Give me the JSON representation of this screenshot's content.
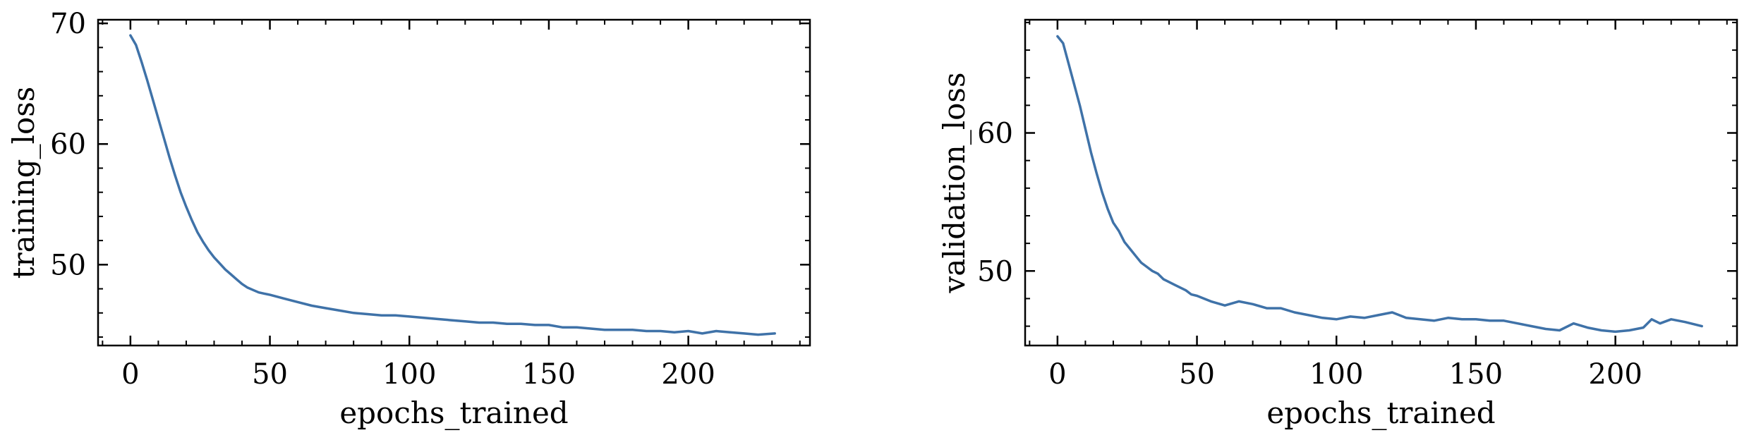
{
  "chart_data": [
    {
      "type": "line",
      "title": "",
      "xlabel": "epochs_trained",
      "ylabel": "training_loss",
      "xlim": [
        -11.6,
        243.6
      ],
      "ylim": [
        43.3,
        70.3
      ],
      "xticks": [
        0,
        50,
        100,
        150,
        200
      ],
      "yticks": [
        50,
        60,
        70
      ],
      "grid": false,
      "line_color": "#3f72a8",
      "series": [
        {
          "x": [
            0,
            2,
            4,
            6,
            8,
            10,
            12,
            14,
            16,
            18,
            20,
            22,
            24,
            26,
            28,
            30,
            32,
            34,
            36,
            38,
            40,
            42,
            44,
            46,
            48,
            50,
            55,
            60,
            65,
            70,
            75,
            80,
            85,
            90,
            95,
            100,
            105,
            110,
            115,
            120,
            125,
            130,
            135,
            140,
            145,
            150,
            155,
            160,
            165,
            170,
            175,
            180,
            185,
            190,
            195,
            200,
            205,
            210,
            215,
            220,
            225,
            231
          ],
          "y": [
            69.0,
            68.2,
            66.8,
            65.3,
            63.7,
            62.1,
            60.5,
            58.9,
            57.4,
            56.0,
            54.8,
            53.7,
            52.7,
            51.9,
            51.2,
            50.6,
            50.1,
            49.6,
            49.2,
            48.8,
            48.4,
            48.1,
            47.9,
            47.7,
            47.6,
            47.5,
            47.2,
            46.9,
            46.6,
            46.4,
            46.2,
            46.0,
            45.9,
            45.8,
            45.8,
            45.7,
            45.6,
            45.5,
            45.4,
            45.3,
            45.2,
            45.2,
            45.1,
            45.1,
            45.0,
            45.0,
            44.8,
            44.8,
            44.7,
            44.6,
            44.6,
            44.6,
            44.5,
            44.5,
            44.4,
            44.5,
            44.3,
            44.5,
            44.4,
            44.3,
            44.2,
            44.3
          ]
        }
      ]
    },
    {
      "type": "line",
      "title": "",
      "xlabel": "epochs_trained",
      "ylabel": "validation_loss",
      "xlim": [
        -11.6,
        243.6
      ],
      "ylim": [
        44.6,
        68.2
      ],
      "xticks": [
        0,
        50,
        100,
        150,
        200
      ],
      "yticks": [
        50,
        60
      ],
      "grid": false,
      "line_color": "#3f72a8",
      "series": [
        {
          "x": [
            0,
            2,
            4,
            6,
            8,
            10,
            12,
            14,
            16,
            18,
            20,
            22,
            24,
            26,
            28,
            30,
            32,
            34,
            36,
            38,
            40,
            42,
            44,
            46,
            48,
            50,
            55,
            60,
            65,
            70,
            75,
            80,
            85,
            90,
            95,
            100,
            105,
            110,
            115,
            120,
            125,
            130,
            135,
            140,
            145,
            150,
            155,
            160,
            165,
            170,
            175,
            180,
            185,
            190,
            195,
            200,
            205,
            210,
            213,
            216,
            220,
            225,
            231
          ],
          "y": [
            67.0,
            66.5,
            65.0,
            63.5,
            62.0,
            60.3,
            58.6,
            57.1,
            55.7,
            54.5,
            53.5,
            52.9,
            52.1,
            51.6,
            51.1,
            50.6,
            50.3,
            50.0,
            49.8,
            49.4,
            49.2,
            49.0,
            48.8,
            48.6,
            48.3,
            48.2,
            47.8,
            47.5,
            47.8,
            47.6,
            47.3,
            47.3,
            47.0,
            46.8,
            46.6,
            46.5,
            46.7,
            46.6,
            46.8,
            47.0,
            46.6,
            46.5,
            46.4,
            46.6,
            46.5,
            46.5,
            46.4,
            46.4,
            46.2,
            46.0,
            45.8,
            45.7,
            46.2,
            45.9,
            45.7,
            45.6,
            45.7,
            45.9,
            46.5,
            46.2,
            46.5,
            46.3,
            46.0
          ]
        }
      ]
    }
  ]
}
